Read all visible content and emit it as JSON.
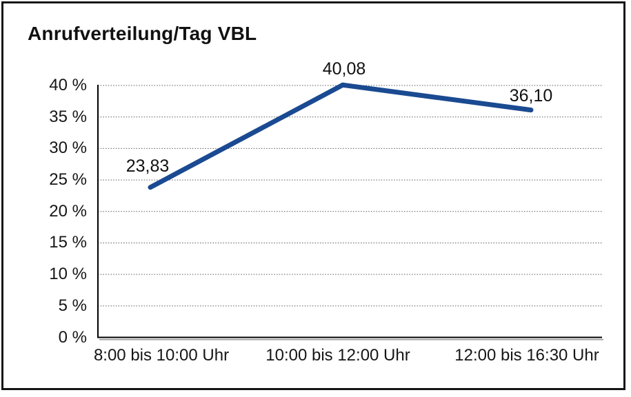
{
  "chart_data": {
    "type": "line",
    "title": "Anrufverteilung/Tag VBL",
    "categories": [
      "8:00 bis 10:00 Uhr",
      "10:00 bis 12:00 Uhr",
      "12:00 bis 16:30 Uhr"
    ],
    "values": [
      23.83,
      40.08,
      36.1
    ],
    "data_labels": [
      "23,83",
      "40,08",
      "36,10"
    ],
    "y_tick_labels": [
      "0 %",
      "5 %",
      "10 %",
      "15 %",
      "20 %",
      "25 %",
      "30 %",
      "35 %",
      "40 %"
    ],
    "ylim": [
      0,
      40
    ],
    "y_tick_step": 5,
    "xlabel": "",
    "ylabel": "",
    "legend_position": "none",
    "grid": "horizontal-dotted",
    "colors": {
      "line": "#1A4A91",
      "grid": "#595959",
      "axis": "#000000",
      "axis_shadow": "#9a9a9a",
      "text": "#111111",
      "background": "#ffffff"
    }
  }
}
